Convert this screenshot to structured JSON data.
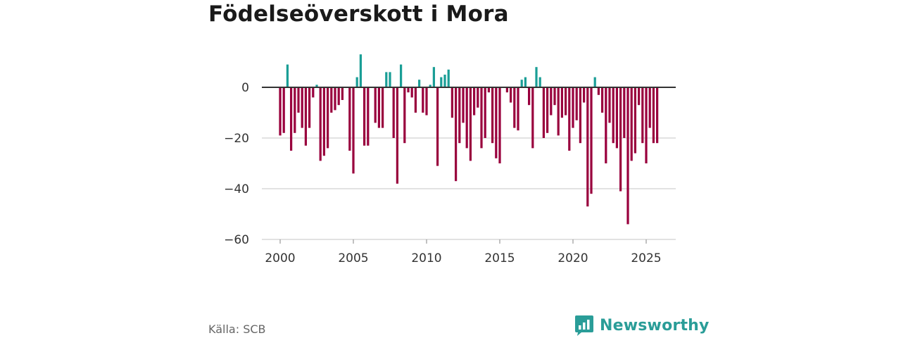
{
  "title": "Födelseöverskott i Mora",
  "source": "Källa: SCB",
  "brand": {
    "name": "Newsworthy",
    "icon": "newsworthy-logo-icon"
  },
  "colors": {
    "positive": "#1a9e96",
    "negative": "#99003d",
    "zero_line": "#333333",
    "grid": "#d9d9d9",
    "brand": "#2a9d98"
  },
  "chart_data": {
    "type": "bar",
    "title": "Födelseöverskott i Mora",
    "xlabel": "",
    "ylabel": "",
    "frequency": "quarterly",
    "x_start": 2000.0,
    "x_step": 0.25,
    "xlim": [
      1999.25,
      2026.5
    ],
    "ylim": [
      -60,
      15
    ],
    "yticks": [
      0,
      -20,
      -40,
      -60
    ],
    "ytick_labels": [
      "0",
      "−20",
      "−40",
      "−60"
    ],
    "xticks": [
      2000,
      2005,
      2010,
      2015,
      2020,
      2025
    ],
    "xtick_labels": [
      "2000",
      "2005",
      "2010",
      "2015",
      "2020",
      "2025"
    ],
    "values": [
      -19,
      -18,
      9,
      -25,
      -18,
      -10,
      -16,
      -23,
      -16,
      -4,
      1,
      -29,
      -27,
      -24,
      -10,
      -9,
      -7,
      -5,
      0,
      -25,
      -34,
      4,
      13,
      -23,
      -23,
      0,
      -14,
      -16,
      -16,
      6,
      6,
      -20,
      -38,
      9,
      -22,
      -2,
      -4,
      -10,
      3,
      -10,
      -11,
      1,
      8,
      -31,
      4,
      5,
      7,
      -12,
      -37,
      -22,
      -14,
      -24,
      -29,
      -11,
      -8,
      -24,
      -20,
      -2,
      -22,
      -28,
      -30,
      0,
      -2,
      -6,
      -16,
      -17,
      3,
      4,
      -7,
      -24,
      8,
      4,
      -20,
      -18,
      -11,
      -7,
      -19,
      -12,
      -11,
      -25,
      -16,
      -13,
      -22,
      -6,
      -47,
      -42,
      4,
      -3,
      -10,
      -30,
      -14,
      -22,
      -24,
      -41,
      -20,
      -54,
      -29,
      -26,
      -7,
      -22,
      -30,
      -16,
      -22,
      -22
    ]
  }
}
